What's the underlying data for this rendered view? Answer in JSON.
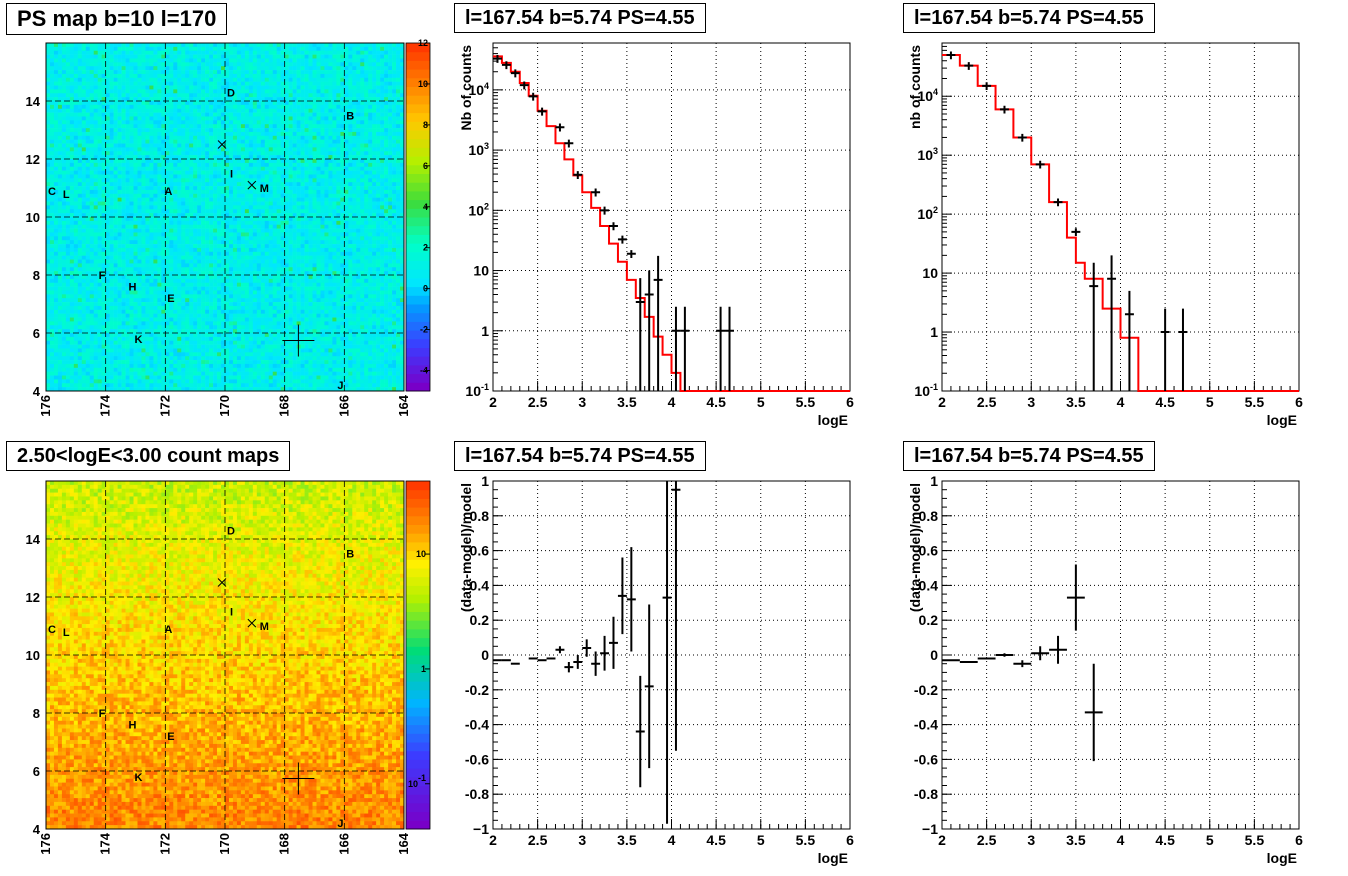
{
  "titles": {
    "map1": "PS map b=10 l=170",
    "map2": "2.50<logE<3.00 count maps",
    "spec1": "l=167.54 b=5.74 PS=4.55",
    "spec2": "l=167.54 b=5.74 PS=4.55",
    "res1": "l=167.54 b=5.74 PS=4.55",
    "res2": "l=167.54 b=5.74 PS=4.55"
  },
  "colors": {
    "model": "#ff0000",
    "data": "#000000",
    "grid": "#000000"
  },
  "chart_data": [
    {
      "type": "heatmap",
      "id": "map1",
      "title": "PS map b=10 l=170",
      "x_ticks": [
        "176",
        "174",
        "172",
        "170",
        "168",
        "166",
        "164"
      ],
      "y_ticks": [
        "4",
        "6",
        "8",
        "10",
        "12",
        "14"
      ],
      "xlim": [
        176,
        164
      ],
      "ylim": [
        4,
        16
      ],
      "colorbar": {
        "ticks": [
          "-4",
          "-2",
          "0",
          "2",
          "4",
          "6",
          "8",
          "10",
          "12"
        ],
        "range": [
          -5,
          12
        ]
      },
      "sources": [
        {
          "label": "A",
          "l": 171.9,
          "b": 10.9
        },
        {
          "label": "B",
          "l": 165.8,
          "b": 13.5
        },
        {
          "label": "C",
          "l": 175.8,
          "b": 10.9
        },
        {
          "label": "D",
          "l": 169.8,
          "b": 14.3
        },
        {
          "label": "E",
          "l": 171.8,
          "b": 7.2
        },
        {
          "label": "F",
          "l": 174.1,
          "b": 8.0
        },
        {
          "label": "H",
          "l": 173.1,
          "b": 7.6
        },
        {
          "label": "I",
          "l": 169.7,
          "b": 11.5
        },
        {
          "label": "J",
          "l": 166.1,
          "b": 4.2
        },
        {
          "label": "K",
          "l": 172.9,
          "b": 5.8
        },
        {
          "label": "L",
          "l": 175.3,
          "b": 10.8
        },
        {
          "label": "M",
          "l": 168.7,
          "b": 11.0
        }
      ],
      "crosses": [
        {
          "l": 170.1,
          "b": 12.5
        },
        {
          "l": 169.1,
          "b": 11.1
        }
      ],
      "marker": {
        "l": 167.54,
        "b": 5.74
      }
    },
    {
      "type": "heatmap",
      "id": "map2",
      "title": "2.50<logE<3.00 count maps",
      "x_ticks": [
        "176",
        "174",
        "172",
        "170",
        "168",
        "166",
        "164"
      ],
      "y_ticks": [
        "4",
        "6",
        "8",
        "10",
        "12",
        "14"
      ],
      "xlim": [
        176,
        164
      ],
      "ylim": [
        4,
        16
      ],
      "colorbar": {
        "ticks": [
          "10^-1",
          "1",
          "10"
        ],
        "scale": "log"
      },
      "sources": [
        {
          "label": "A",
          "l": 171.9,
          "b": 10.9
        },
        {
          "label": "B",
          "l": 165.8,
          "b": 13.5
        },
        {
          "label": "C",
          "l": 175.8,
          "b": 10.9
        },
        {
          "label": "D",
          "l": 169.8,
          "b": 14.3
        },
        {
          "label": "E",
          "l": 171.8,
          "b": 7.2
        },
        {
          "label": "F",
          "l": 174.1,
          "b": 8.0
        },
        {
          "label": "H",
          "l": 173.1,
          "b": 7.6
        },
        {
          "label": "I",
          "l": 169.7,
          "b": 11.5
        },
        {
          "label": "J",
          "l": 166.1,
          "b": 4.2
        },
        {
          "label": "K",
          "l": 172.9,
          "b": 5.8
        },
        {
          "label": "L",
          "l": 175.3,
          "b": 10.8
        },
        {
          "label": "M",
          "l": 168.7,
          "b": 11.0
        }
      ],
      "crosses": [
        {
          "l": 170.1,
          "b": 12.5
        },
        {
          "l": 169.1,
          "b": 11.1
        }
      ],
      "marker": {
        "l": 167.54,
        "b": 5.74
      }
    },
    {
      "type": "line",
      "id": "spec1",
      "title": "l=167.54 b=5.74 PS=4.55",
      "xlabel": "logE",
      "ylabel": "Nb of counts",
      "xlim": [
        2,
        6
      ],
      "ylim": [
        0.1,
        60000
      ],
      "yscale": "log",
      "x_ticks": [
        "2",
        "2.5",
        "3",
        "3.5",
        "4",
        "4.5",
        "5",
        "5.5",
        "6"
      ],
      "y_ticks": [
        {
          "v": 0.1,
          "t": "10^-1"
        },
        {
          "v": 1,
          "t": "1"
        },
        {
          "v": 10,
          "t": "10"
        },
        {
          "v": 100,
          "t": "10^2"
        },
        {
          "v": 1000,
          "t": "10^3"
        },
        {
          "v": 10000,
          "t": "10^4"
        }
      ],
      "model_edges": [
        2.0,
        2.1,
        2.2,
        2.3,
        2.4,
        2.5,
        2.6,
        2.7,
        2.8,
        2.9,
        3.0,
        3.1,
        3.2,
        3.3,
        3.4,
        3.5,
        3.6,
        3.7,
        3.8,
        3.9,
        4.0,
        4.1,
        4.2,
        6.0
      ],
      "model_values": [
        36000,
        28000,
        20000,
        13000,
        8000,
        4500,
        2500,
        1300,
        700,
        380,
        200,
        110,
        55,
        28,
        14,
        7,
        3.5,
        1.7,
        0.8,
        0.4,
        0.2,
        0.1,
        0.1
      ],
      "data": [
        {
          "x": 2.05,
          "y": 33000,
          "ey": 0
        },
        {
          "x": 2.15,
          "y": 26000,
          "ey": 0
        },
        {
          "x": 2.25,
          "y": 19000,
          "ey": 0
        },
        {
          "x": 2.35,
          "y": 12000,
          "ey": 0
        },
        {
          "x": 2.45,
          "y": 7800,
          "ey": 0
        },
        {
          "x": 2.55,
          "y": 4400,
          "ey": 0
        },
        {
          "x": 2.75,
          "y": 2400,
          "ey": 0
        },
        {
          "x": 2.85,
          "y": 1300,
          "ey": 0
        },
        {
          "x": 2.95,
          "y": 390,
          "ey": 0
        },
        {
          "x": 3.15,
          "y": 200,
          "ey": 0
        },
        {
          "x": 3.25,
          "y": 100,
          "ey": 0
        },
        {
          "x": 3.35,
          "y": 55,
          "ey": 0
        },
        {
          "x": 3.45,
          "y": 33,
          "ey": 0
        },
        {
          "x": 3.55,
          "y": 19,
          "ey": 0
        },
        {
          "x": 3.65,
          "y": 3,
          "ey": 1
        },
        {
          "x": 3.75,
          "y": 4,
          "ey": 1
        },
        {
          "x": 3.85,
          "y": 7,
          "ey": 1
        },
        {
          "x": 4.05,
          "y": 1,
          "ey": 1
        },
        {
          "x": 4.15,
          "y": 1,
          "ey": 1
        },
        {
          "x": 4.55,
          "y": 1,
          "ey": 1
        },
        {
          "x": 4.65,
          "y": 1,
          "ey": 1
        }
      ]
    },
    {
      "type": "line",
      "id": "spec2",
      "title": "l=167.54 b=5.74 PS=4.55",
      "xlabel": "logE",
      "ylabel": "nb of counts",
      "xlim": [
        2,
        6
      ],
      "ylim": [
        0.1,
        80000
      ],
      "yscale": "log",
      "x_ticks": [
        "2",
        "2.5",
        "3",
        "3.5",
        "4",
        "4.5",
        "5",
        "5.5",
        "6"
      ],
      "y_ticks": [
        {
          "v": 0.1,
          "t": "10^-1"
        },
        {
          "v": 1,
          "t": "1"
        },
        {
          "v": 10,
          "t": "10"
        },
        {
          "v": 100,
          "t": "10^2"
        },
        {
          "v": 1000,
          "t": "10^3"
        },
        {
          "v": 10000,
          "t": "10^4"
        }
      ],
      "model_edges": [
        2.0,
        2.2,
        2.4,
        2.6,
        2.8,
        3.0,
        3.2,
        3.4,
        3.5,
        3.6,
        3.8,
        4.0,
        4.2,
        6.0
      ],
      "model_values": [
        50000,
        33000,
        15000,
        6000,
        2000,
        700,
        160,
        40,
        15,
        8,
        2.5,
        0.8,
        0.1
      ],
      "data": [
        {
          "x": 2.1,
          "y": 50000,
          "ey": 0
        },
        {
          "x": 2.3,
          "y": 33000,
          "ey": 0
        },
        {
          "x": 2.5,
          "y": 15000,
          "ey": 0
        },
        {
          "x": 2.7,
          "y": 6000,
          "ey": 0
        },
        {
          "x": 2.9,
          "y": 2000,
          "ey": 0
        },
        {
          "x": 3.1,
          "y": 700,
          "ey": 0
        },
        {
          "x": 3.3,
          "y": 160,
          "ey": 0
        },
        {
          "x": 3.5,
          "y": 50,
          "ey": 0
        },
        {
          "x": 3.7,
          "y": 6,
          "ey": 1
        },
        {
          "x": 3.9,
          "y": 8,
          "ey": 1
        },
        {
          "x": 4.1,
          "y": 2,
          "ey": 1
        },
        {
          "x": 4.5,
          "y": 1,
          "ey": 1
        },
        {
          "x": 4.7,
          "y": 1,
          "ey": 1
        }
      ]
    },
    {
      "type": "scatter",
      "id": "res1",
      "title": "l=167.54 b=5.74 PS=4.55",
      "xlabel": "logE",
      "ylabel": "(data-model)/model",
      "xlim": [
        2,
        6
      ],
      "ylim": [
        -1,
        1
      ],
      "x_ticks": [
        "2",
        "2.5",
        "3",
        "3.5",
        "4",
        "4.5",
        "5",
        "5.5",
        "6"
      ],
      "y_ticks": [
        "-1",
        "-0.8",
        "-0.6",
        "-0.4",
        "-0.2",
        "0",
        "0.2",
        "0.4",
        "0.6",
        "0.8",
        "1"
      ],
      "data": [
        {
          "x": 2.05,
          "y": -0.03,
          "ey": 0,
          "ex": 0.05
        },
        {
          "x": 2.15,
          "y": -0.03,
          "ey": 0,
          "ex": 0.05
        },
        {
          "x": 2.25,
          "y": -0.05,
          "ey": 0,
          "ex": 0.05
        },
        {
          "x": 2.45,
          "y": -0.02,
          "ey": 0,
          "ex": 0.05
        },
        {
          "x": 2.55,
          "y": -0.03,
          "ey": 0,
          "ex": 0.05
        },
        {
          "x": 2.65,
          "y": -0.02,
          "ey": 0,
          "ex": 0.05
        },
        {
          "x": 2.75,
          "y": 0.03,
          "ey": 0.02,
          "ex": 0.05
        },
        {
          "x": 2.85,
          "y": -0.07,
          "ey": 0.03,
          "ex": 0.05
        },
        {
          "x": 2.95,
          "y": -0.04,
          "ey": 0.04,
          "ex": 0.05
        },
        {
          "x": 3.05,
          "y": 0.04,
          "ey": 0.05,
          "ex": 0.05
        },
        {
          "x": 3.15,
          "y": -0.05,
          "ey": 0.07,
          "ex": 0.05
        },
        {
          "x": 3.25,
          "y": 0.01,
          "ey": 0.1,
          "ex": 0.05
        },
        {
          "x": 3.35,
          "y": 0.07,
          "ey": 0.15,
          "ex": 0.05
        },
        {
          "x": 3.45,
          "y": 0.34,
          "ey": 0.22,
          "ex": 0.05
        },
        {
          "x": 3.55,
          "y": 0.32,
          "ey": 0.3,
          "ex": 0.05
        },
        {
          "x": 3.65,
          "y": -0.44,
          "ey": 0.32,
          "ex": 0.05
        },
        {
          "x": 3.75,
          "y": -0.18,
          "ey": 0.47,
          "ex": 0.05
        },
        {
          "x": 3.95,
          "y": 0.33,
          "ey": 1.3,
          "ex": 0.05
        },
        {
          "x": 4.05,
          "y": 0.95,
          "ey": 1.5,
          "ex": 0.05
        }
      ]
    },
    {
      "type": "scatter",
      "id": "res2",
      "title": "l=167.54 b=5.74 PS=4.55",
      "xlabel": "logE",
      "ylabel": "(data-model)/model",
      "xlim": [
        2,
        6
      ],
      "ylim": [
        -1,
        1
      ],
      "x_ticks": [
        "2",
        "2.5",
        "3",
        "3.5",
        "4",
        "4.5",
        "5",
        "5.5",
        "6"
      ],
      "y_ticks": [
        "-1",
        "-0.8",
        "-0.6",
        "-0.4",
        "-0.2",
        "0",
        "0.2",
        "0.4",
        "0.6",
        "0.8",
        "1"
      ],
      "data": [
        {
          "x": 2.1,
          "y": -0.03,
          "ey": 0,
          "ex": 0.1
        },
        {
          "x": 2.3,
          "y": -0.04,
          "ey": 0,
          "ex": 0.1
        },
        {
          "x": 2.5,
          "y": -0.02,
          "ey": 0,
          "ex": 0.1
        },
        {
          "x": 2.7,
          "y": 0.0,
          "ey": 0.01,
          "ex": 0.1
        },
        {
          "x": 2.9,
          "y": -0.05,
          "ey": 0.02,
          "ex": 0.1
        },
        {
          "x": 3.1,
          "y": 0.01,
          "ey": 0.04,
          "ex": 0.1
        },
        {
          "x": 3.3,
          "y": 0.03,
          "ey": 0.08,
          "ex": 0.1
        },
        {
          "x": 3.5,
          "y": 0.33,
          "ey": 0.19,
          "ex": 0.1
        },
        {
          "x": 3.7,
          "y": -0.33,
          "ey": 0.28,
          "ex": 0.1
        }
      ]
    }
  ]
}
